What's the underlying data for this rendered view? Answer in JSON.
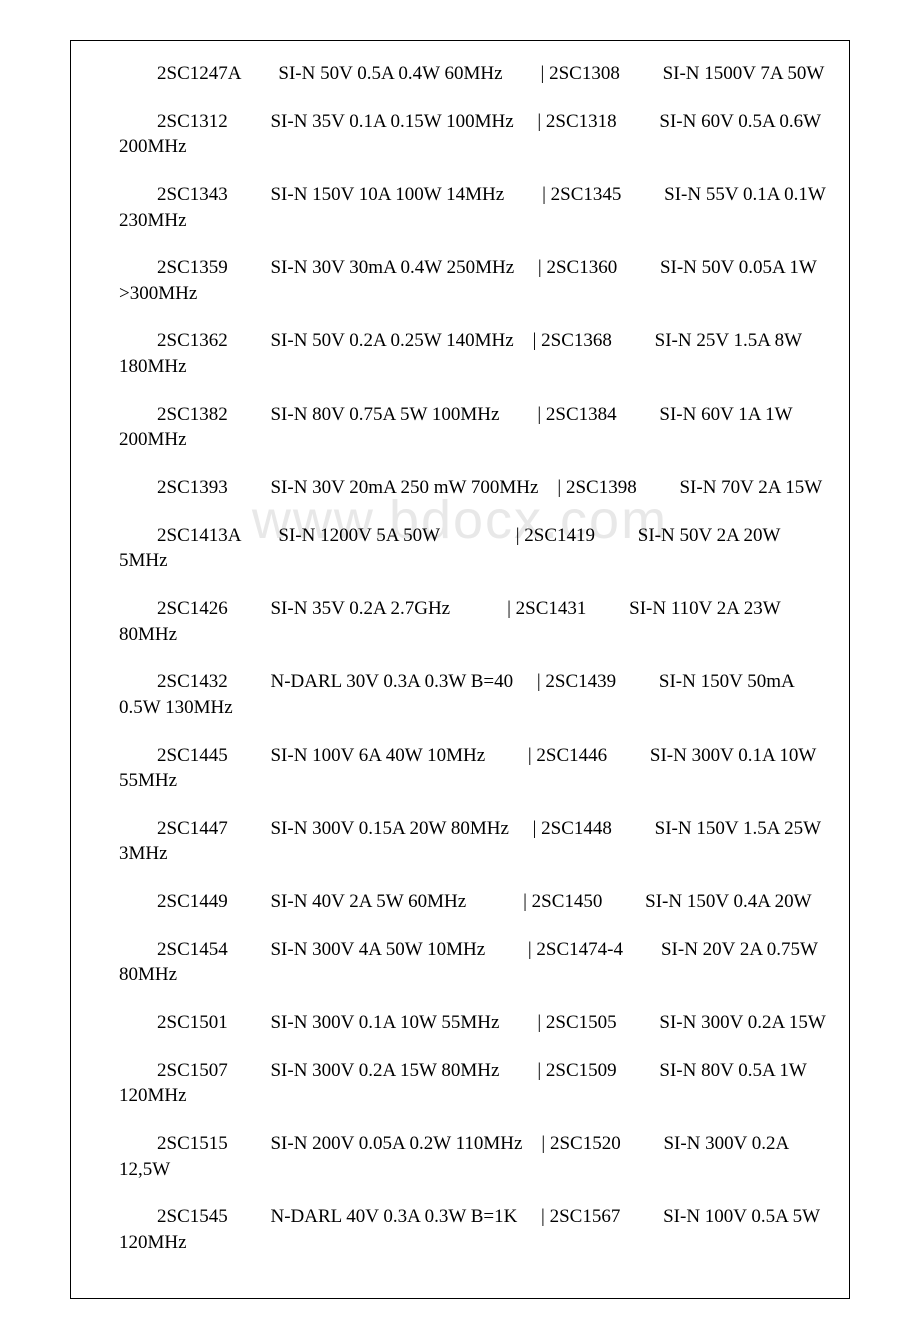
{
  "document": {
    "font_family": "Times New Roman",
    "font_size_pt": 14,
    "text_color": "#000000",
    "background_color": "#ffffff",
    "border_color": "#000000",
    "watermark_text": "www.bdocx.com",
    "watermark_color": "#e8e8e8"
  },
  "entries": [
    {
      "line": "　　2SC1247A　　SI-N 50V 0.5A 0.4W 60MHz　　| 2SC1308　　 SI-N 1500V 7A 50W"
    },
    {
      "line": "　　2SC1312　　 SI-N 35V 0.1A 0.15W 100MHz　 | 2SC1318　　 SI-N 60V 0.5A 0.6W 200MHz"
    },
    {
      "line": "　　2SC1343　　 SI-N 150V 10A 100W 14MHz　　| 2SC1345　　 SI-N 55V 0.1A 0.1W 230MHz"
    },
    {
      "line": "　　2SC1359　　 SI-N 30V 30mA 0.4W 250MHz　 | 2SC1360　　 SI-N 50V 0.05A 1W >300MHz"
    },
    {
      "line": "　　2SC1362　　 SI-N 50V 0.2A 0.25W 140MHz　| 2SC1368　　 SI-N 25V 1.5A 8W 180MHz"
    },
    {
      "line": "　　2SC1382　　 SI-N 80V 0.75A 5W 100MHz　　| 2SC1384　　 SI-N 60V 1A 1W 200MHz"
    },
    {
      "line": "　　2SC1393　　 SI-N 30V 20mA 250 mW 700MHz　| 2SC1398　　 SI-N 70V 2A 15W"
    },
    {
      "line": "　　2SC1413A　　SI-N 1200V 5A 50W　　　　| 2SC1419　　 SI-N 50V 2A 20W 5MHz"
    },
    {
      "line": "　　2SC1426　　 SI-N 35V 0.2A 2.7GHz　　　| 2SC1431　　 SI-N 110V 2A 23W 80MHz"
    },
    {
      "line": "　　2SC1432　　 N-DARL 30V 0.3A 0.3W B=40　 | 2SC1439　　 SI-N 150V 50mA 0.5W 130MHz"
    },
    {
      "line": "　　2SC1445　　 SI-N 100V 6A 40W 10MHz　　 | 2SC1446　　 SI-N 300V 0.1A 10W 55MHz"
    },
    {
      "line": "　　2SC1447　　 SI-N 300V 0.15A 20W 80MHz　 | 2SC1448　　 SI-N 150V 1.5A 25W 3MHz"
    },
    {
      "line": "　　2SC1449　　 SI-N 40V 2A 5W 60MHz　　　| 2SC1450　　 SI-N 150V 0.4A 20W"
    },
    {
      "line": "　　2SC1454　　 SI-N 300V 4A 50W 10MHz　　 | 2SC1474-4　　SI-N 20V 2A 0.75W 80MHz"
    },
    {
      "line": "　　2SC1501　　 SI-N 300V 0.1A 10W 55MHz　　| 2SC1505　　 SI-N 300V 0.2A 15W"
    },
    {
      "line": "　　2SC1507　　 SI-N 300V 0.2A 15W 80MHz　　| 2SC1509　　 SI-N 80V 0.5A 1W 120MHz"
    },
    {
      "line": "　　2SC1515　　 SI-N 200V 0.05A 0.2W 110MHz　| 2SC1520　　 SI-N 300V 0.2A 12,5W"
    },
    {
      "line": "　　2SC1545　　 N-DARL 40V 0.3A 0.3W B=1K　 | 2SC1567　　 SI-N 100V 0.5A 5W 120MHz"
    }
  ]
}
